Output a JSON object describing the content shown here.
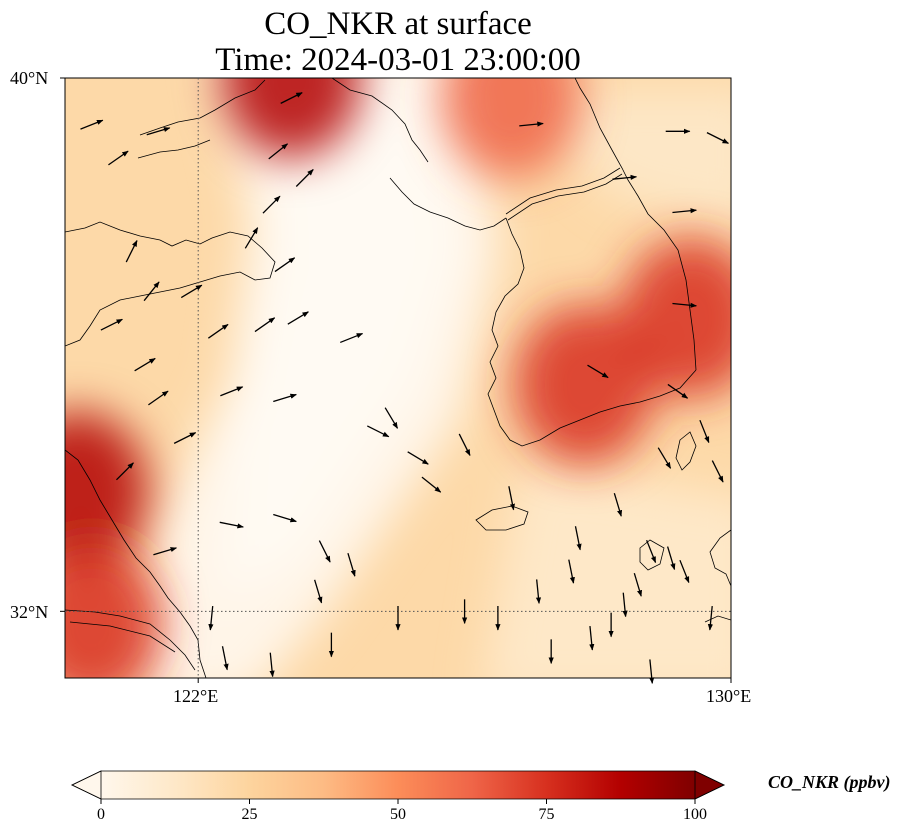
{
  "title_line1": "CO_NKR at surface",
  "title_line2": "Time: 2024-03-01 23:00:00",
  "variable": "CO_NKR",
  "units": "ppbv",
  "lat_labels": [
    "40°N",
    "32°N"
  ],
  "lon_labels": [
    "122°E",
    "130°E"
  ],
  "extent": {
    "lon_min": 120,
    "lon_max": 130,
    "lat_min": 31,
    "lat_max": 40
  },
  "gridlines": {
    "lon": [
      122,
      130
    ],
    "lat": [
      40,
      32
    ],
    "style": "dotted"
  },
  "colorbar": {
    "label": "CO_NKR (ppbv)",
    "ticks": [
      "0",
      "25",
      "50",
      "75",
      "100"
    ],
    "min": 0,
    "max": 100,
    "colormap": "OrRd",
    "extend": "both",
    "colors": [
      "#fff7ec",
      "#fee8c8",
      "#fdd49e",
      "#fdbb84",
      "#fc8d59",
      "#ef6548",
      "#d7301f",
      "#b30000",
      "#7f0000"
    ]
  },
  "concentration_hotspots": [
    {
      "lon": 127.8,
      "lat": 35.4,
      "value": 78
    },
    {
      "lon": 129.4,
      "lat": 36.4,
      "value": 80
    },
    {
      "lon": 126.7,
      "lat": 39.7,
      "value": 62
    },
    {
      "lon": 123.4,
      "lat": 40.0,
      "value": 82
    },
    {
      "lon": 120.2,
      "lat": 33.8,
      "value": 85
    },
    {
      "lon": 120.4,
      "lat": 31.8,
      "value": 72
    }
  ],
  "wind_vectors": [
    {
      "lon": 120.4,
      "lat": 39.3,
      "u": 1,
      "v": 0.4
    },
    {
      "lon": 120.8,
      "lat": 38.8,
      "u": 1,
      "v": 0.7
    },
    {
      "lon": 121.4,
      "lat": 39.2,
      "u": 1,
      "v": 0.3
    },
    {
      "lon": 123.4,
      "lat": 39.7,
      "u": 1,
      "v": 0.5
    },
    {
      "lon": 123.2,
      "lat": 38.9,
      "u": 1,
      "v": 0.8
    },
    {
      "lon": 123.6,
      "lat": 38.5,
      "u": 1,
      "v": 1
    },
    {
      "lon": 123.1,
      "lat": 38.1,
      "u": 1,
      "v": 1
    },
    {
      "lon": 122.8,
      "lat": 37.6,
      "u": 0.6,
      "v": 1
    },
    {
      "lon": 123.3,
      "lat": 37.2,
      "u": 1,
      "v": 0.7
    },
    {
      "lon": 121.0,
      "lat": 37.4,
      "u": 0.5,
      "v": 1
    },
    {
      "lon": 121.3,
      "lat": 36.8,
      "u": 0.8,
      "v": 1
    },
    {
      "lon": 120.7,
      "lat": 36.3,
      "u": 1,
      "v": 0.5
    },
    {
      "lon": 122.3,
      "lat": 36.2,
      "u": 1,
      "v": 0.7
    },
    {
      "lon": 123.0,
      "lat": 36.3,
      "u": 1,
      "v": 0.7
    },
    {
      "lon": 123.5,
      "lat": 36.4,
      "u": 1,
      "v": 0.6
    },
    {
      "lon": 124.3,
      "lat": 36.1,
      "u": 1,
      "v": 0.4
    },
    {
      "lon": 121.4,
      "lat": 35.2,
      "u": 1,
      "v": 0.7
    },
    {
      "lon": 122.5,
      "lat": 35.3,
      "u": 1,
      "v": 0.4
    },
    {
      "lon": 121.8,
      "lat": 34.6,
      "u": 1,
      "v": 0.5
    },
    {
      "lon": 120.9,
      "lat": 34.1,
      "u": 1,
      "v": 1
    },
    {
      "lon": 121.2,
      "lat": 35.7,
      "u": 1,
      "v": 0.6
    },
    {
      "lon": 123.3,
      "lat": 35.2,
      "u": 1,
      "v": 0.3
    },
    {
      "lon": 121.5,
      "lat": 32.9,
      "u": 1,
      "v": 0.3
    },
    {
      "lon": 122.5,
      "lat": 33.3,
      "u": 1,
      "v": -0.2
    },
    {
      "lon": 123.3,
      "lat": 33.4,
      "u": 1,
      "v": -0.3
    },
    {
      "lon": 123.9,
      "lat": 32.9,
      "u": 0.5,
      "v": -1
    },
    {
      "lon": 124.3,
      "lat": 32.7,
      "u": 0.3,
      "v": -1
    },
    {
      "lon": 123.8,
      "lat": 32.3,
      "u": 0.3,
      "v": -1
    },
    {
      "lon": 122.2,
      "lat": 31.9,
      "u": -0.1,
      "v": -1
    },
    {
      "lon": 122.4,
      "lat": 31.3,
      "u": 0.2,
      "v": -1
    },
    {
      "lon": 123.1,
      "lat": 31.2,
      "u": 0.1,
      "v": -1
    },
    {
      "lon": 124.0,
      "lat": 31.5,
      "u": 0,
      "v": -1
    },
    {
      "lon": 125.3,
      "lat": 34.3,
      "u": 1,
      "v": -0.6
    },
    {
      "lon": 125.5,
      "lat": 33.9,
      "u": 1,
      "v": -0.8
    },
    {
      "lon": 126.0,
      "lat": 34.5,
      "u": 0.5,
      "v": -1
    },
    {
      "lon": 126.7,
      "lat": 33.7,
      "u": 0.2,
      "v": -1
    },
    {
      "lon": 126.0,
      "lat": 32.0,
      "u": 0,
      "v": -1
    },
    {
      "lon": 125.0,
      "lat": 31.9,
      "u": 0,
      "v": -1
    },
    {
      "lon": 126.5,
      "lat": 31.9,
      "u": 0,
      "v": -1
    },
    {
      "lon": 127.1,
      "lat": 32.3,
      "u": 0.1,
      "v": -1
    },
    {
      "lon": 127.6,
      "lat": 32.6,
      "u": 0.2,
      "v": -1
    },
    {
      "lon": 127.3,
      "lat": 31.4,
      "u": 0,
      "v": -1
    },
    {
      "lon": 127.9,
      "lat": 31.6,
      "u": 0.1,
      "v": -1
    },
    {
      "lon": 128.2,
      "lat": 31.8,
      "u": 0,
      "v": -1
    },
    {
      "lon": 128.4,
      "lat": 32.1,
      "u": 0.1,
      "v": -1
    },
    {
      "lon": 127.7,
      "lat": 33.1,
      "u": 0.2,
      "v": -1
    },
    {
      "lon": 128.3,
      "lat": 33.6,
      "u": 0.3,
      "v": -1
    },
    {
      "lon": 128.6,
      "lat": 32.4,
      "u": 0.3,
      "v": -1
    },
    {
      "lon": 128.8,
      "lat": 32.9,
      "u": 0.4,
      "v": -1
    },
    {
      "lon": 129.1,
      "lat": 32.8,
      "u": 0.3,
      "v": -1
    },
    {
      "lon": 129.3,
      "lat": 32.6,
      "u": 0.4,
      "v": -1
    },
    {
      "lon": 129.7,
      "lat": 31.9,
      "u": -0.1,
      "v": -1
    },
    {
      "lon": 128.8,
      "lat": 31.1,
      "u": 0.1,
      "v": -1
    },
    {
      "lon": 129.6,
      "lat": 34.7,
      "u": 0.4,
      "v": -1
    },
    {
      "lon": 129.8,
      "lat": 34.1,
      "u": 0.5,
      "v": -1
    },
    {
      "lon": 129.0,
      "lat": 34.3,
      "u": 0.6,
      "v": -1
    },
    {
      "lon": 128.0,
      "lat": 35.6,
      "u": 1,
      "v": -0.6
    },
    {
      "lon": 129.2,
      "lat": 35.3,
      "u": 1,
      "v": -0.7
    },
    {
      "lon": 129.3,
      "lat": 36.6,
      "u": 1,
      "v": -0.1
    },
    {
      "lon": 129.3,
      "lat": 38.0,
      "u": 1,
      "v": 0.1
    },
    {
      "lon": 128.4,
      "lat": 38.5,
      "u": 1,
      "v": 0.1
    },
    {
      "lon": 129.2,
      "lat": 39.2,
      "u": 1,
      "v": 0
    },
    {
      "lon": 129.8,
      "lat": 39.1,
      "u": 1,
      "v": -0.5
    },
    {
      "lon": 127.0,
      "lat": 39.3,
      "u": 1,
      "v": 0.1
    },
    {
      "lon": 124.7,
      "lat": 34.7,
      "u": 1,
      "v": -0.5
    },
    {
      "lon": 124.9,
      "lat": 34.9,
      "u": 0.6,
      "v": -1
    },
    {
      "lon": 121.9,
      "lat": 36.8,
      "u": 1,
      "v": 0.6
    }
  ]
}
